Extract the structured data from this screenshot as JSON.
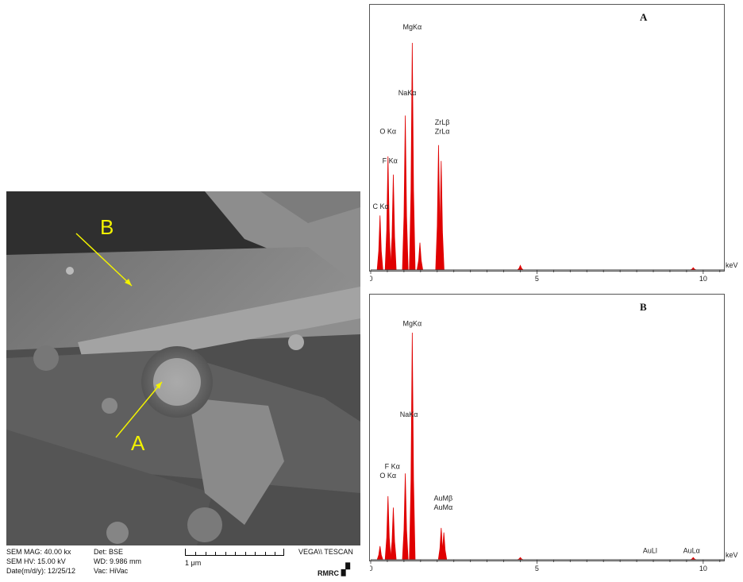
{
  "sem_image": {
    "labels": [
      "A",
      "B"
    ],
    "info": {
      "mag": "SEM MAG: 40.00 kx",
      "hv": "SEM HV: 15.00 kV",
      "date": "Date(m/d/y): 12/25/12",
      "det": "Det: BSE",
      "wd": "WD: 9.986 mm",
      "vac": "Vac: HiVac",
      "scale": "1 μm",
      "brand": "VEGA\\\\ TESCAN",
      "lab": "RMRC"
    }
  },
  "chart_data": [
    {
      "type": "line",
      "title": "A",
      "xlabel": "keV",
      "ylabel": "",
      "xlim": [
        0,
        10.6
      ],
      "ylim": [
        0,
        100
      ],
      "x_ticks": [
        0,
        5,
        10
      ],
      "color": "#e00000",
      "peaks": [
        {
          "label": "C Kα",
          "energy": 0.28,
          "height": 24
        },
        {
          "label": "F Kα",
          "energy": 0.52,
          "height": 50
        },
        {
          "label": "O Kα",
          "energy": 0.68,
          "height": 42
        },
        {
          "label": "NaKα",
          "energy": 1.04,
          "height": 68
        },
        {
          "label": "MgKα",
          "energy": 1.25,
          "height": 100
        },
        {
          "label": "",
          "energy": 1.48,
          "height": 12
        },
        {
          "label": "ZrLβ",
          "energy": 2.04,
          "height": 55
        },
        {
          "label": "ZrLα",
          "energy": 2.12,
          "height": 48
        },
        {
          "label": "",
          "energy": 4.5,
          "height": 2
        },
        {
          "label": "",
          "energy": 9.7,
          "height": 1
        }
      ],
      "labels": [
        {
          "text": "MgKα",
          "energy": 1.25,
          "height": 106
        },
        {
          "text": "NaKα",
          "energy": 1.1,
          "height": 77
        },
        {
          "text": "O Kα",
          "energy": 0.52,
          "height": 60
        },
        {
          "text": "F Kα",
          "energy": 0.58,
          "height": 47
        },
        {
          "text": "C Kα",
          "energy": 0.3,
          "height": 27
        },
        {
          "text": "ZrLβ",
          "energy": 2.15,
          "height": 64
        },
        {
          "text": "ZrLα",
          "energy": 2.15,
          "height": 60
        }
      ]
    },
    {
      "type": "line",
      "title": "B",
      "xlabel": "keV",
      "ylabel": "",
      "xlim": [
        0,
        10.6
      ],
      "ylim": [
        0,
        100
      ],
      "x_ticks": [
        0,
        5,
        10
      ],
      "color": "#e00000",
      "peaks": [
        {
          "label": "",
          "energy": 0.28,
          "height": 6
        },
        {
          "label": "O Kα",
          "energy": 0.52,
          "height": 28
        },
        {
          "label": "F Kα",
          "energy": 0.68,
          "height": 23
        },
        {
          "label": "NaKα",
          "energy": 1.04,
          "height": 38
        },
        {
          "label": "MgKα",
          "energy": 1.25,
          "height": 100
        },
        {
          "label": "AuMβ",
          "energy": 2.12,
          "height": 14
        },
        {
          "label": "AuMα",
          "energy": 2.2,
          "height": 12
        },
        {
          "label": "",
          "energy": 4.5,
          "height": 1
        },
        {
          "label": "",
          "energy": 9.7,
          "height": 1
        }
      ],
      "labels": [
        {
          "text": "MgKα",
          "energy": 1.25,
          "height": 103
        },
        {
          "text": "NaKα",
          "energy": 1.15,
          "height": 63
        },
        {
          "text": "F Kα",
          "energy": 0.65,
          "height": 40
        },
        {
          "text": "O Kα",
          "energy": 0.52,
          "height": 36
        },
        {
          "text": "AuMβ",
          "energy": 2.18,
          "height": 26
        },
        {
          "text": "AuMα",
          "energy": 2.18,
          "height": 22
        },
        {
          "text": "AuLl",
          "energy": 8.4,
          "height": 3
        },
        {
          "text": "AuLα",
          "energy": 9.65,
          "height": 3
        }
      ]
    }
  ]
}
